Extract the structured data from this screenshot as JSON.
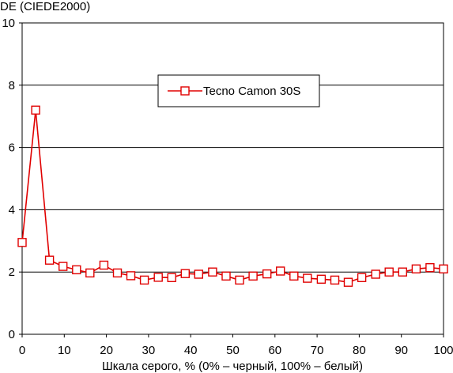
{
  "chart_data": {
    "type": "line",
    "ylabel": "DE (CIEDE2000)",
    "xlabel": "Шкала серого, % (0% – черный, 100% – белый)",
    "xlim": [
      0,
      100
    ],
    "ylim": [
      0,
      10
    ],
    "x_ticks": [
      0,
      10,
      20,
      30,
      40,
      50,
      60,
      70,
      80,
      90,
      100
    ],
    "y_ticks": [
      0,
      2,
      4,
      6,
      8,
      10
    ],
    "grid": "horizontal",
    "legend_position": "top-center",
    "series": [
      {
        "name": "Tecno Camon 30S",
        "color": "#e00000",
        "marker": "square-open",
        "x": [
          0,
          3.2,
          6.5,
          9.7,
          12.9,
          16.1,
          19.4,
          22.6,
          25.8,
          29.0,
          32.3,
          35.5,
          38.7,
          41.9,
          45.2,
          48.4,
          51.6,
          54.8,
          58.1,
          61.3,
          64.5,
          67.7,
          71.0,
          74.2,
          77.4,
          80.6,
          83.9,
          87.1,
          90.3,
          93.5,
          96.8,
          100
        ],
        "y": [
          2.95,
          7.2,
          2.38,
          2.18,
          2.07,
          1.97,
          2.22,
          1.97,
          1.88,
          1.74,
          1.83,
          1.82,
          1.95,
          1.93,
          2.0,
          1.87,
          1.74,
          1.87,
          1.94,
          2.03,
          1.87,
          1.8,
          1.77,
          1.74,
          1.67,
          1.82,
          1.93,
          2.0,
          2.0,
          2.1,
          2.14,
          2.1
        ]
      }
    ]
  }
}
